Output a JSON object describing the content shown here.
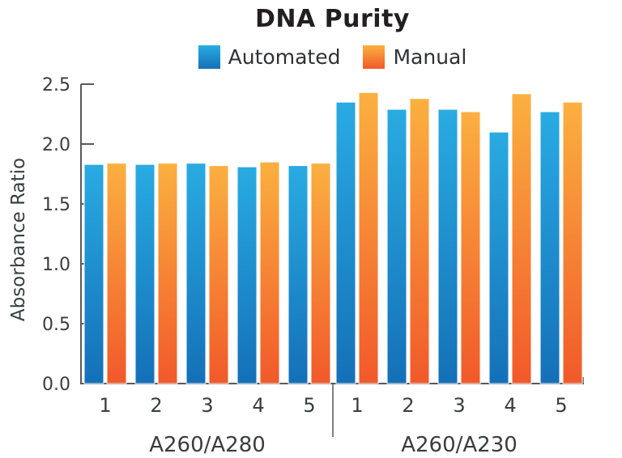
{
  "figure": {
    "title": "DNA Purity",
    "ylabel": "Absorbance Ratio"
  },
  "colors": {
    "title_text": "#231F20",
    "legend_text": "#2F3133",
    "label_text": "#3A3C3E",
    "axis": "#58595B",
    "blue_top": "#29ABE2",
    "blue_bottom": "#1470B8",
    "orange_top": "#FBB040",
    "orange_bottom": "#F1592A"
  },
  "chart_data": {
    "type": "bar",
    "title": "DNA Purity",
    "xlabel": "",
    "ylabel": "Absorbance Ratio",
    "ylim": [
      0,
      2.5
    ],
    "yticks": [
      "0.0",
      "0.5",
      "1.0",
      "1.5",
      "2.0",
      "2.5"
    ],
    "grid": false,
    "legend_position": "top",
    "categories": [
      "1",
      "2",
      "3",
      "4",
      "5"
    ],
    "groups": [
      {
        "label": "A260/A280"
      },
      {
        "label": "A260/A230"
      }
    ],
    "series": [
      {
        "name": "Automated",
        "gradient": [
          "#29ABE2",
          "#1470B8"
        ],
        "values": [
          [
            1.83,
            1.83,
            1.84,
            1.81,
            1.82
          ],
          [
            2.35,
            2.29,
            2.29,
            2.1,
            2.27
          ]
        ]
      },
      {
        "name": "Manual",
        "gradient": [
          "#FBB040",
          "#F1592A"
        ],
        "values": [
          [
            1.84,
            1.84,
            1.82,
            1.85,
            1.84
          ],
          [
            2.43,
            2.38,
            2.27,
            2.42,
            2.35
          ]
        ]
      }
    ]
  }
}
